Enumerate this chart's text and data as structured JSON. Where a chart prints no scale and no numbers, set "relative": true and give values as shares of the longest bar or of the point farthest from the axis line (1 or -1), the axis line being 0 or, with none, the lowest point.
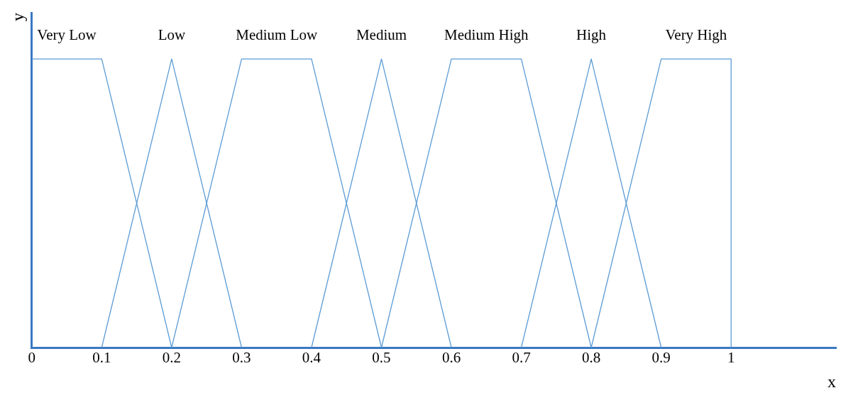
{
  "chart_data": {
    "type": "line",
    "relative": true,
    "xlabel": "x",
    "ylabel": "y",
    "xlim": [
      0,
      1.15
    ],
    "xticks": [
      0,
      0.1,
      0.2,
      0.3,
      0.4,
      0.5,
      0.6,
      0.7,
      0.8,
      0.9,
      1
    ],
    "grid": false,
    "legend": false,
    "marker": "none",
    "line_style": "solid",
    "series": [
      {
        "name": "Very Low",
        "color": "#5b9bd5",
        "x": [
          0,
          0.1,
          0.2
        ],
        "values": [
          1,
          1,
          0
        ]
      },
      {
        "name": "Low",
        "color": "#5b9bd5",
        "x": [
          0.1,
          0.2,
          0.3
        ],
        "values": [
          0,
          1,
          0
        ]
      },
      {
        "name": "Medium Low",
        "color": "#5b9bd5",
        "x": [
          0.2,
          0.3,
          0.4,
          0.5
        ],
        "values": [
          0,
          1,
          1,
          0
        ]
      },
      {
        "name": "Medium",
        "color": "#5b9bd5",
        "x": [
          0.4,
          0.5,
          0.6
        ],
        "values": [
          0,
          1,
          0
        ]
      },
      {
        "name": "Medium High",
        "color": "#5b9bd5",
        "x": [
          0.5,
          0.6,
          0.7,
          0.8
        ],
        "values": [
          0,
          1,
          1,
          0
        ]
      },
      {
        "name": "High",
        "color": "#5b9bd5",
        "x": [
          0.7,
          0.8,
          0.9
        ],
        "values": [
          0,
          1,
          0
        ]
      },
      {
        "name": "Very High",
        "color": "#5b9bd5",
        "x": [
          0.8,
          0.9,
          1,
          1
        ],
        "values": [
          0,
          1,
          1,
          0
        ]
      }
    ]
  }
}
